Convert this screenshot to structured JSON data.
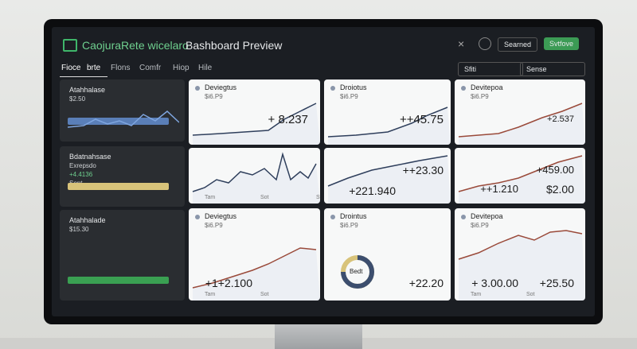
{
  "header": {
    "brand": "CaojuraRete wicelaro",
    "title": "Bashboard Preview",
    "buttons": [
      "Searned",
      "Svtfove"
    ]
  },
  "tabs": [
    "Fioce",
    "brte",
    "Flons",
    "Comfr",
    "Hiop",
    "Hile"
  ],
  "search": "Sfiti",
  "filter": "Sense",
  "sidebar": [
    {
      "title": "Atahhalase",
      "lines": [
        "$2.50"
      ]
    },
    {
      "title": "Bdatnahsase",
      "lines": [
        "Exrepsdo",
        "+4.4136",
        "Sont"
      ]
    },
    {
      "title": "Atahhalade",
      "lines": [
        "$15.30"
      ]
    }
  ],
  "cards": [
    {
      "title": "Deviegtus",
      "subtitle": "$i6.P9",
      "values": [
        "+ 8.237"
      ]
    },
    {
      "title": "Droiotus",
      "subtitle": "$i6.P9",
      "values": [
        "++45.75"
      ]
    },
    {
      "title": "Devitepoa",
      "subtitle": "$i6.P9",
      "values": [
        "+2.537"
      ]
    },
    {
      "axis": [
        "Tam",
        "Sot",
        "Sff"
      ]
    },
    {
      "values": [
        "++23.30",
        "+221.940"
      ]
    },
    {
      "values": [
        "+459.00",
        "++1.210",
        "$2.00"
      ]
    },
    {
      "title": "Deviegtus",
      "subtitle": "$i6.P9",
      "values": [
        "+1+2.100"
      ],
      "axis": [
        "Tam",
        "Sot"
      ]
    },
    {
      "title": "Drointus",
      "subtitle": "$i6.P9",
      "donut": "Bedt",
      "values": [
        "+22.20"
      ]
    },
    {
      "title": "Devitepoa",
      "subtitle": "$i6.P9",
      "values": [
        "+ 3.00.00",
        "+25.50"
      ],
      "axis": [
        "Tam",
        "Sot"
      ]
    }
  ]
}
